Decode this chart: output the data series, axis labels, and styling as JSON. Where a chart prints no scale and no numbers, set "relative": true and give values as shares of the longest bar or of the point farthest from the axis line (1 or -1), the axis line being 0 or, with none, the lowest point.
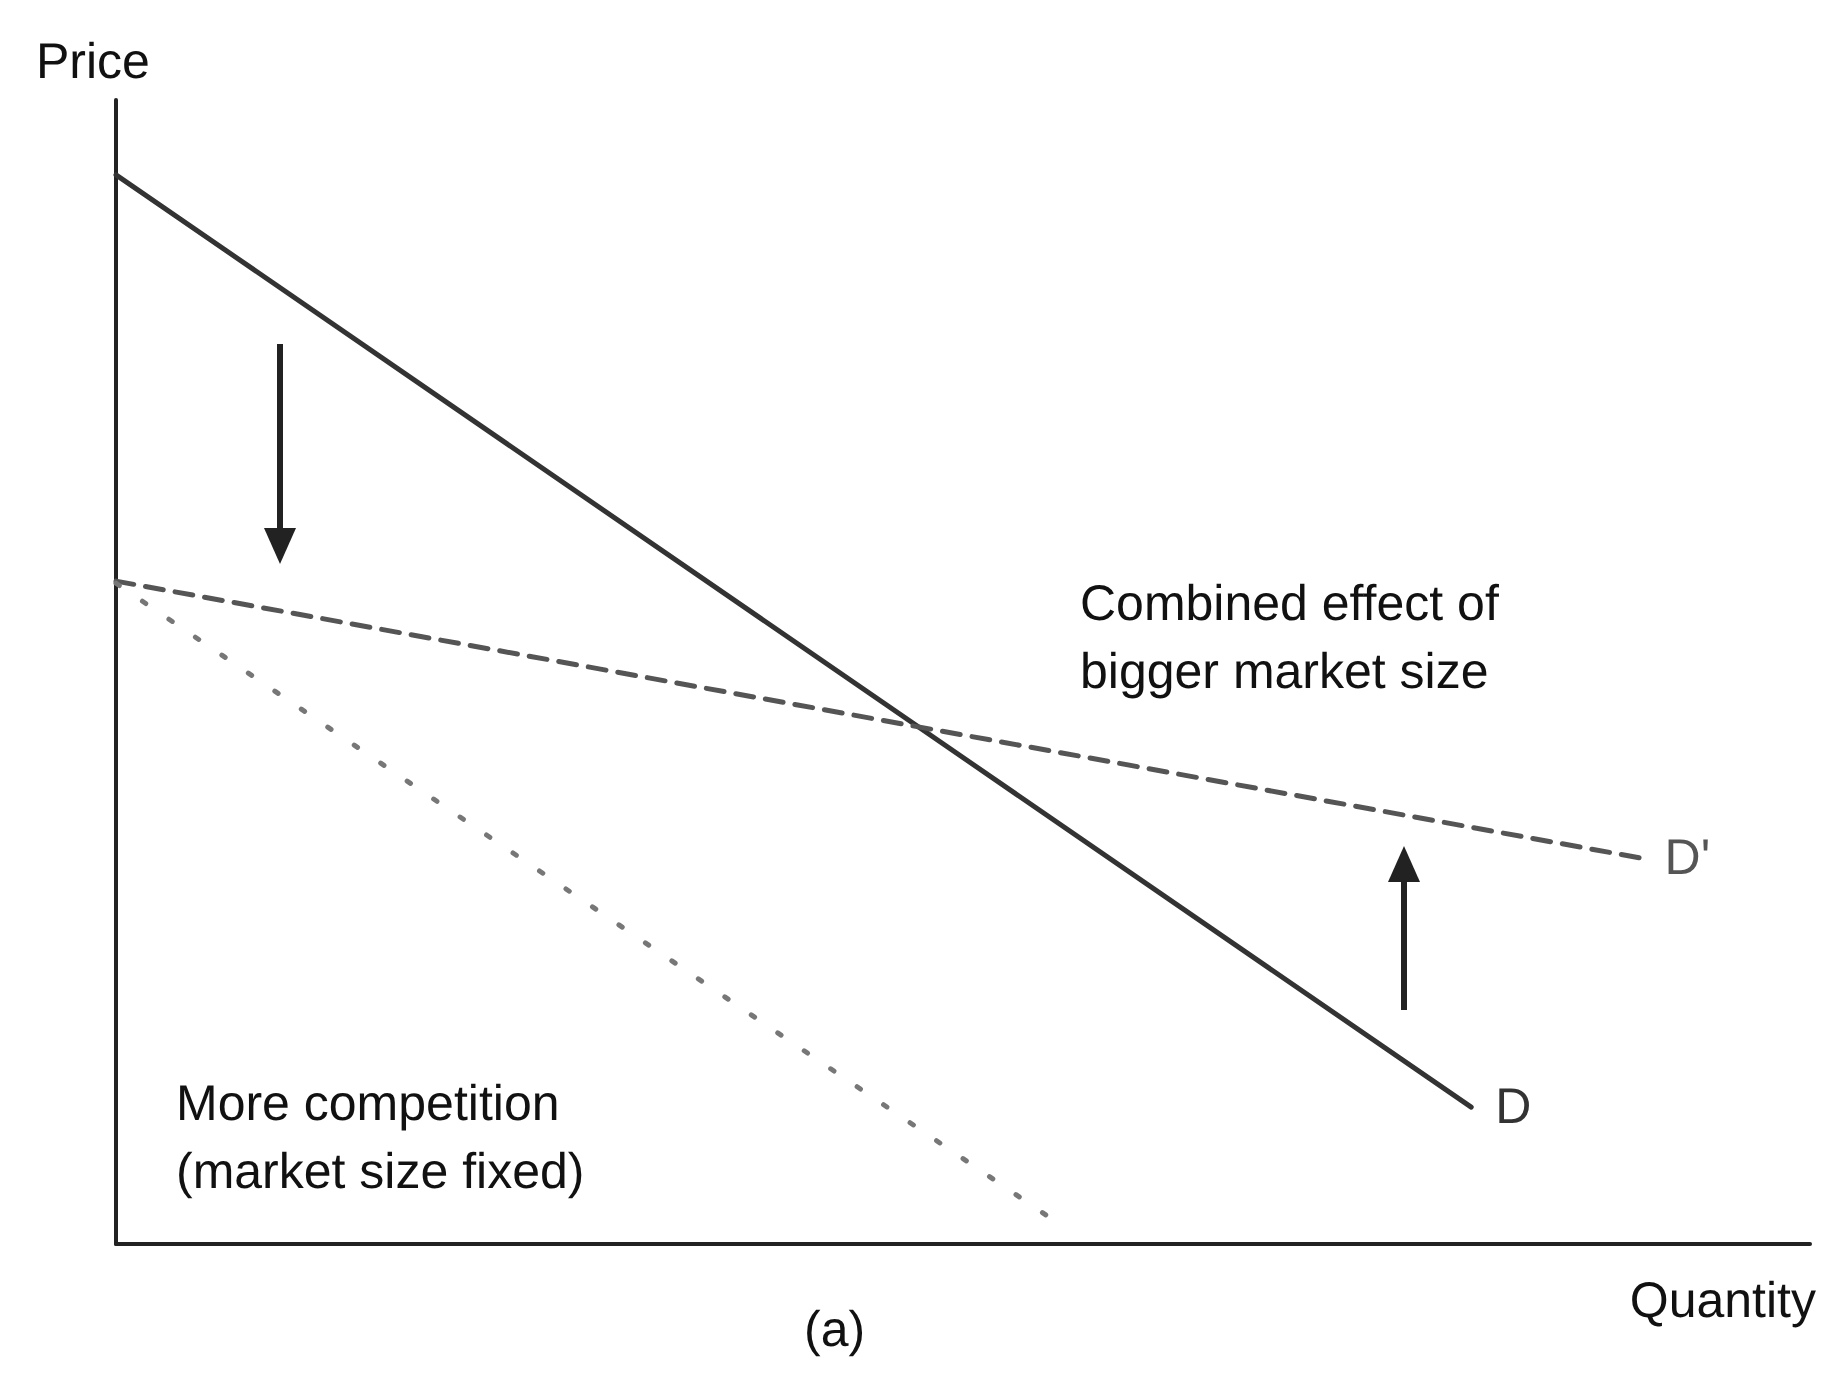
{
  "chart_data": {
    "type": "line",
    "relative": true,
    "xlabel": "Quantity",
    "ylabel": "Price",
    "grid": false,
    "legend": false,
    "marker": "none",
    "categories": [
      null,
      null,
      null,
      null,
      null,
      null,
      null,
      null,
      null,
      null,
      null,
      null,
      null,
      null,
      null,
      null,
      null,
      null,
      null,
      null,
      null
    ],
    "annotations": [
      "Combined effect of\nbigger market size",
      "More competition\n(market size fixed)",
      "(a)"
    ],
    "series": [
      {
        "name": "D",
        "color": "#333333",
        "line_style": "solid",
        "values": [
          1,
          null,
          null,
          null,
          null,
          null,
          null,
          null,
          null,
          null,
          null,
          null,
          null,
          null,
          null,
          null,
          0.128,
          null,
          null,
          null,
          null
        ]
      },
      {
        "name": "D'",
        "color": "#555555",
        "line_style": "dashed",
        "values": [
          0.62,
          null,
          null,
          null,
          null,
          null,
          null,
          null,
          null,
          null,
          null,
          null,
          null,
          null,
          null,
          null,
          null,
          null,
          0.361,
          null,
          null
        ]
      },
      {
        "color": "#777777",
        "line_style": "dotted",
        "values": [
          0.618,
          null,
          null,
          null,
          null,
          null,
          null,
          null,
          null,
          null,
          null,
          0.026,
          null,
          null,
          null,
          null,
          null,
          null,
          null,
          null,
          null
        ]
      }
    ]
  }
}
